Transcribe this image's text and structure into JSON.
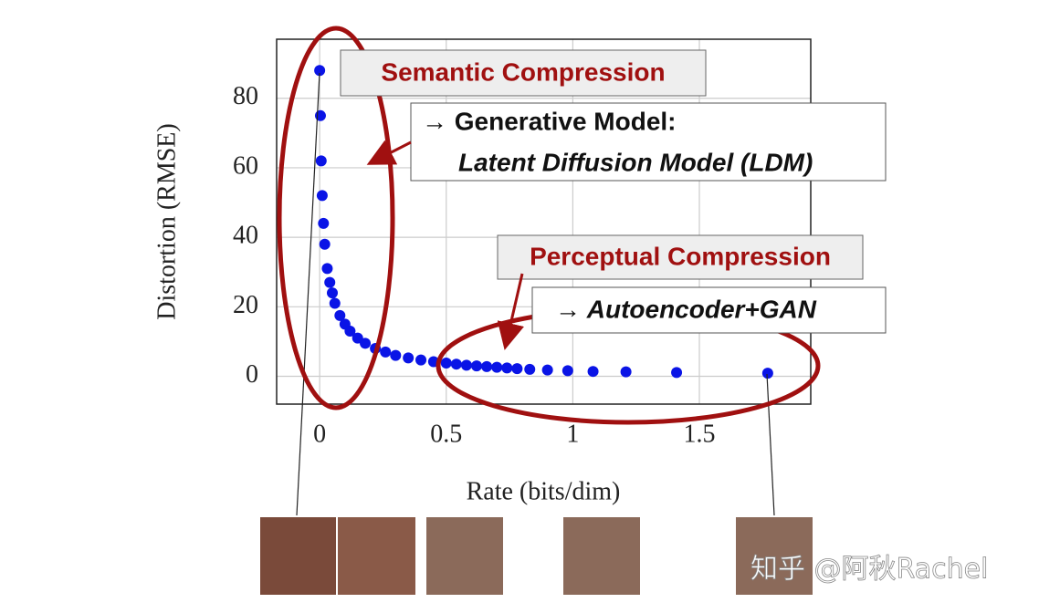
{
  "chart_data": {
    "type": "scatter",
    "xlabel": "Rate (bits/dim)",
    "ylabel": "Distortion (RMSE)",
    "x": [
      0,
      0.003,
      0.006,
      0.01,
      0.015,
      0.02,
      0.03,
      0.04,
      0.05,
      0.06,
      0.08,
      0.1,
      0.12,
      0.15,
      0.18,
      0.22,
      0.26,
      0.3,
      0.35,
      0.4,
      0.45,
      0.5,
      0.54,
      0.58,
      0.62,
      0.66,
      0.7,
      0.74,
      0.78,
      0.83,
      0.9,
      0.98,
      1.08,
      1.21,
      1.41,
      1.77
    ],
    "values": [
      88,
      75,
      62,
      52,
      44,
      38,
      31,
      27,
      24,
      21,
      17.5,
      15,
      13,
      11,
      9.5,
      8,
      7,
      6,
      5.3,
      4.7,
      4.2,
      3.8,
      3.5,
      3.2,
      3,
      2.8,
      2.6,
      2.4,
      2.2,
      2,
      1.8,
      1.6,
      1.4,
      1.3,
      1.1,
      0.9
    ],
    "color": "#0a14e6",
    "xlim": [
      -0.17,
      1.94
    ],
    "xticks": [
      0,
      0.5,
      1,
      1.5
    ],
    "ylim": [
      -8,
      97
    ],
    "yticks": [
      0,
      20,
      40,
      60,
      80
    ],
    "grid": true,
    "annotations": [
      "Semantic Compression",
      "→ Generative Model:",
      "Latent Diffusion Model (LDM)",
      "Perceptual Compression",
      "→ Autoencoder+GAN"
    ],
    "watermark": "知乎 @阿秋Rachel"
  }
}
